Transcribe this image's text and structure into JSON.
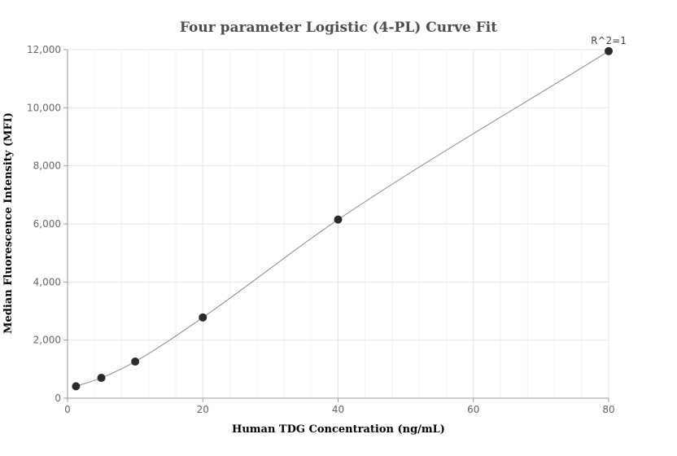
{
  "chart_data": {
    "type": "scatter",
    "title": "Four parameter Logistic (4-PL) Curve Fit",
    "xlabel": "Human TDG Concentration (ng/mL)",
    "ylabel": "Median Fluorescence Intensity (MFI)",
    "xlim": [
      0,
      80
    ],
    "ylim": [
      0,
      12000
    ],
    "x_ticks": [
      0,
      20,
      40,
      60,
      80
    ],
    "x_tick_labels": [
      "0",
      "20",
      "40",
      "60",
      "80"
    ],
    "y_ticks": [
      0,
      2000,
      4000,
      6000,
      8000,
      10000,
      12000
    ],
    "y_tick_labels": [
      "0",
      "2,000",
      "4,000",
      "6,000",
      "8,000",
      "10,000",
      "12,000"
    ],
    "grid": true,
    "annotation": "R^2=1",
    "colors": {
      "points": "#2b2b2b",
      "curve": "#8c8c8c",
      "grid": "#e6e6e6"
    },
    "points": [
      {
        "x": 1.25,
        "y": 410
      },
      {
        "x": 5,
        "y": 700
      },
      {
        "x": 10,
        "y": 1260
      },
      {
        "x": 20,
        "y": 2780
      },
      {
        "x": 40,
        "y": 6150
      },
      {
        "x": 80,
        "y": 11950
      }
    ]
  }
}
